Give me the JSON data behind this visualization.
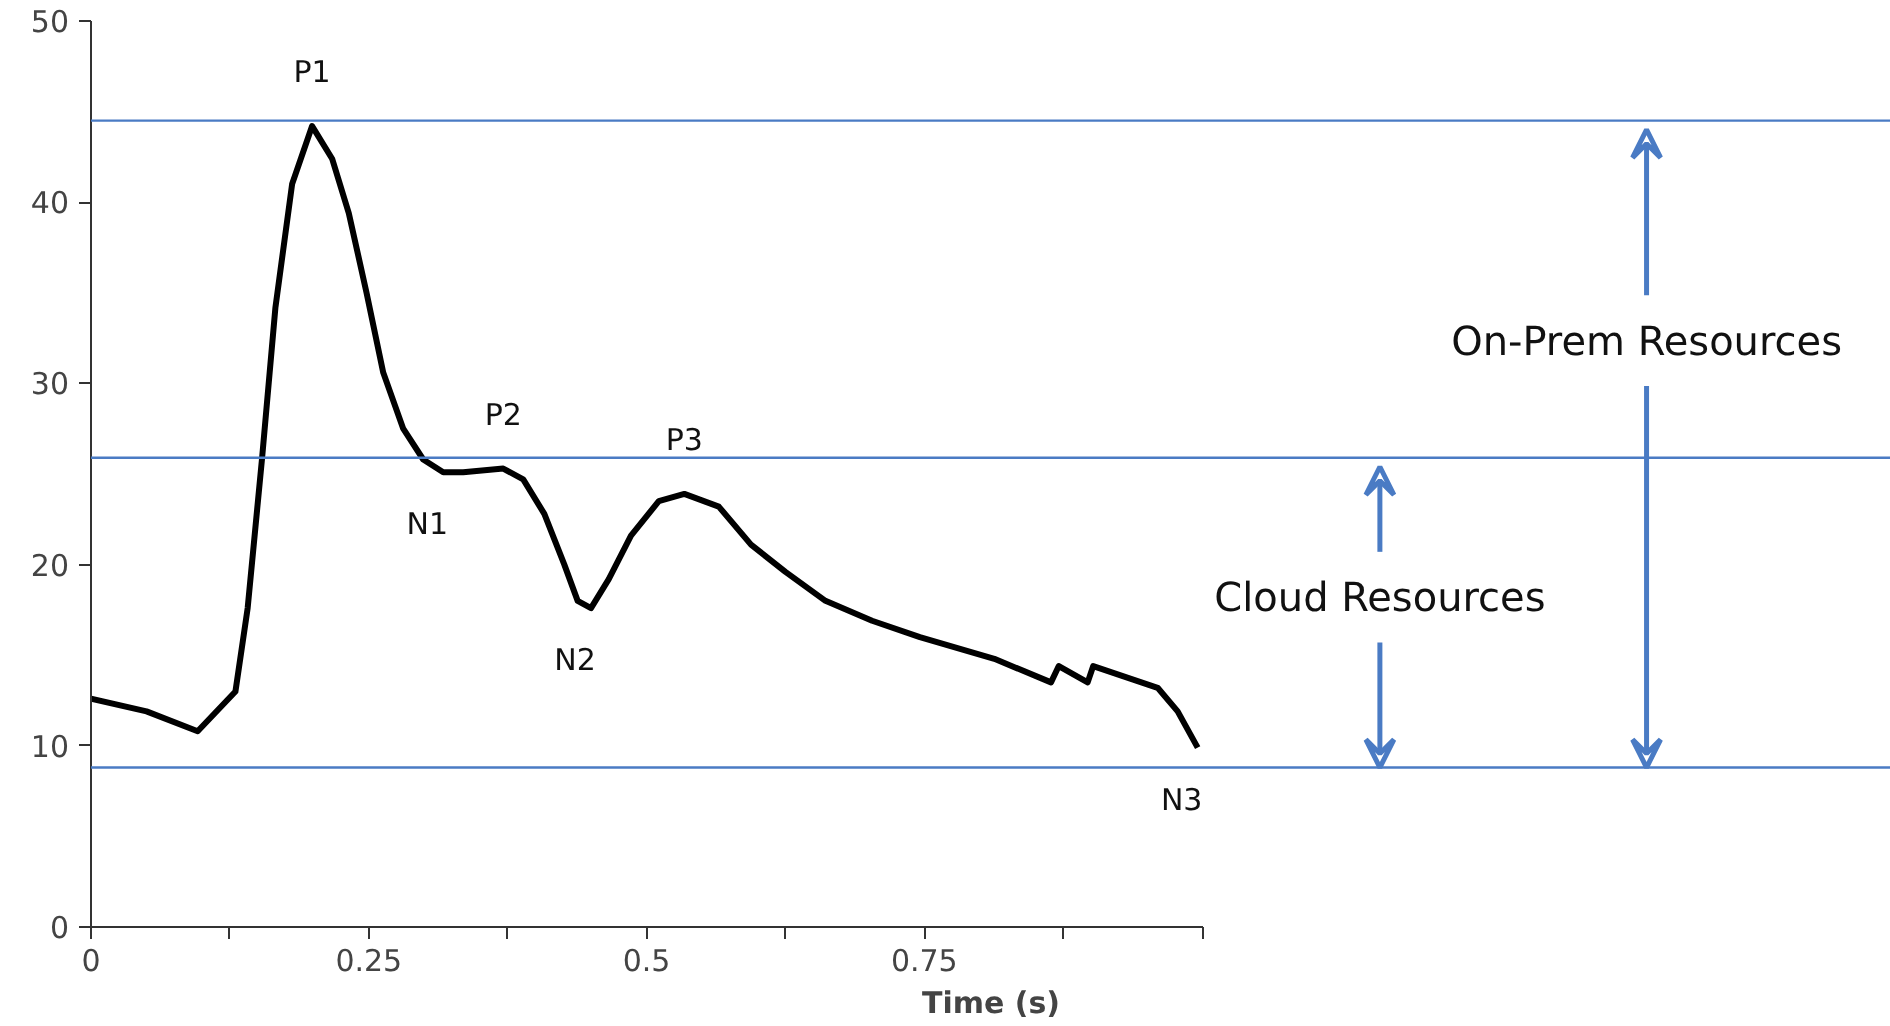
{
  "chart_data": {
    "type": "line",
    "xlabel": "Time (s)",
    "x": [
      0,
      0.05,
      0.096,
      0.13,
      0.141,
      0.154,
      0.166,
      0.181,
      0.199,
      0.217,
      0.232,
      0.248,
      0.263,
      0.281,
      0.299,
      0.317,
      0.335,
      0.371,
      0.389,
      0.408,
      0.426,
      0.438,
      0.45,
      0.466,
      0.486,
      0.511,
      0.534,
      0.565,
      0.594,
      0.625,
      0.661,
      0.703,
      0.746,
      0.813,
      0.864,
      0.871,
      0.897,
      0.902,
      0.96,
      0.978,
      0.996
    ],
    "series": [
      {
        "color": "#000000",
        "values": [
          12.6,
          11.9,
          10.8,
          13,
          17.6,
          25.9,
          34.2,
          41,
          44.2,
          42.4,
          39.4,
          35,
          30.6,
          27.5,
          25.8,
          25.1,
          25.1,
          25.3,
          24.7,
          22.8,
          20,
          18,
          17.6,
          19.2,
          21.6,
          23.5,
          23.9,
          23.2,
          21.1,
          19.6,
          18,
          16.9,
          16,
          14.8,
          13.5,
          14.4,
          13.5,
          14.4,
          13.2,
          11.9,
          9.9
        ]
      }
    ],
    "xlim": [
      0,
      1
    ],
    "ylim": [
      0,
      50
    ],
    "xticks": [
      0,
      {
        "value": 0.125,
        "label": null
      },
      0.25,
      {
        "value": 0.375,
        "label": null
      },
      0.5,
      {
        "value": 0.625,
        "label": null
      },
      0.75,
      {
        "value": 0.875,
        "label": null
      },
      {
        "value": 1,
        "label": null
      }
    ],
    "yticks": [
      0,
      10,
      20,
      30,
      40,
      50
    ],
    "grid": false,
    "marker": "none",
    "line_style": "solid",
    "ref_lines": [
      {
        "axis": "y",
        "value": 44.5,
        "color": "#4a7bc4"
      },
      {
        "axis": "y",
        "value": 25.9,
        "color": "#4a7bc4"
      },
      {
        "axis": "y",
        "value": 8.8,
        "color": "#4a7bc4"
      }
    ],
    "annotations": [
      {
        "text": "P1",
        "x": 0.199,
        "y": 44.2
      },
      {
        "text": "P2",
        "x": 0.371,
        "y": 25.3
      },
      {
        "text": "P3",
        "x": 0.534,
        "y": 23.9
      },
      {
        "text": "N1",
        "x": 0.317,
        "y": 25.1
      },
      {
        "text": "N2",
        "x": 0.45,
        "y": 17.6
      },
      {
        "text": "N3",
        "x": 0.996,
        "y": 9.9
      },
      "Cloud Resources",
      "On-Prem Resources"
    ]
  }
}
